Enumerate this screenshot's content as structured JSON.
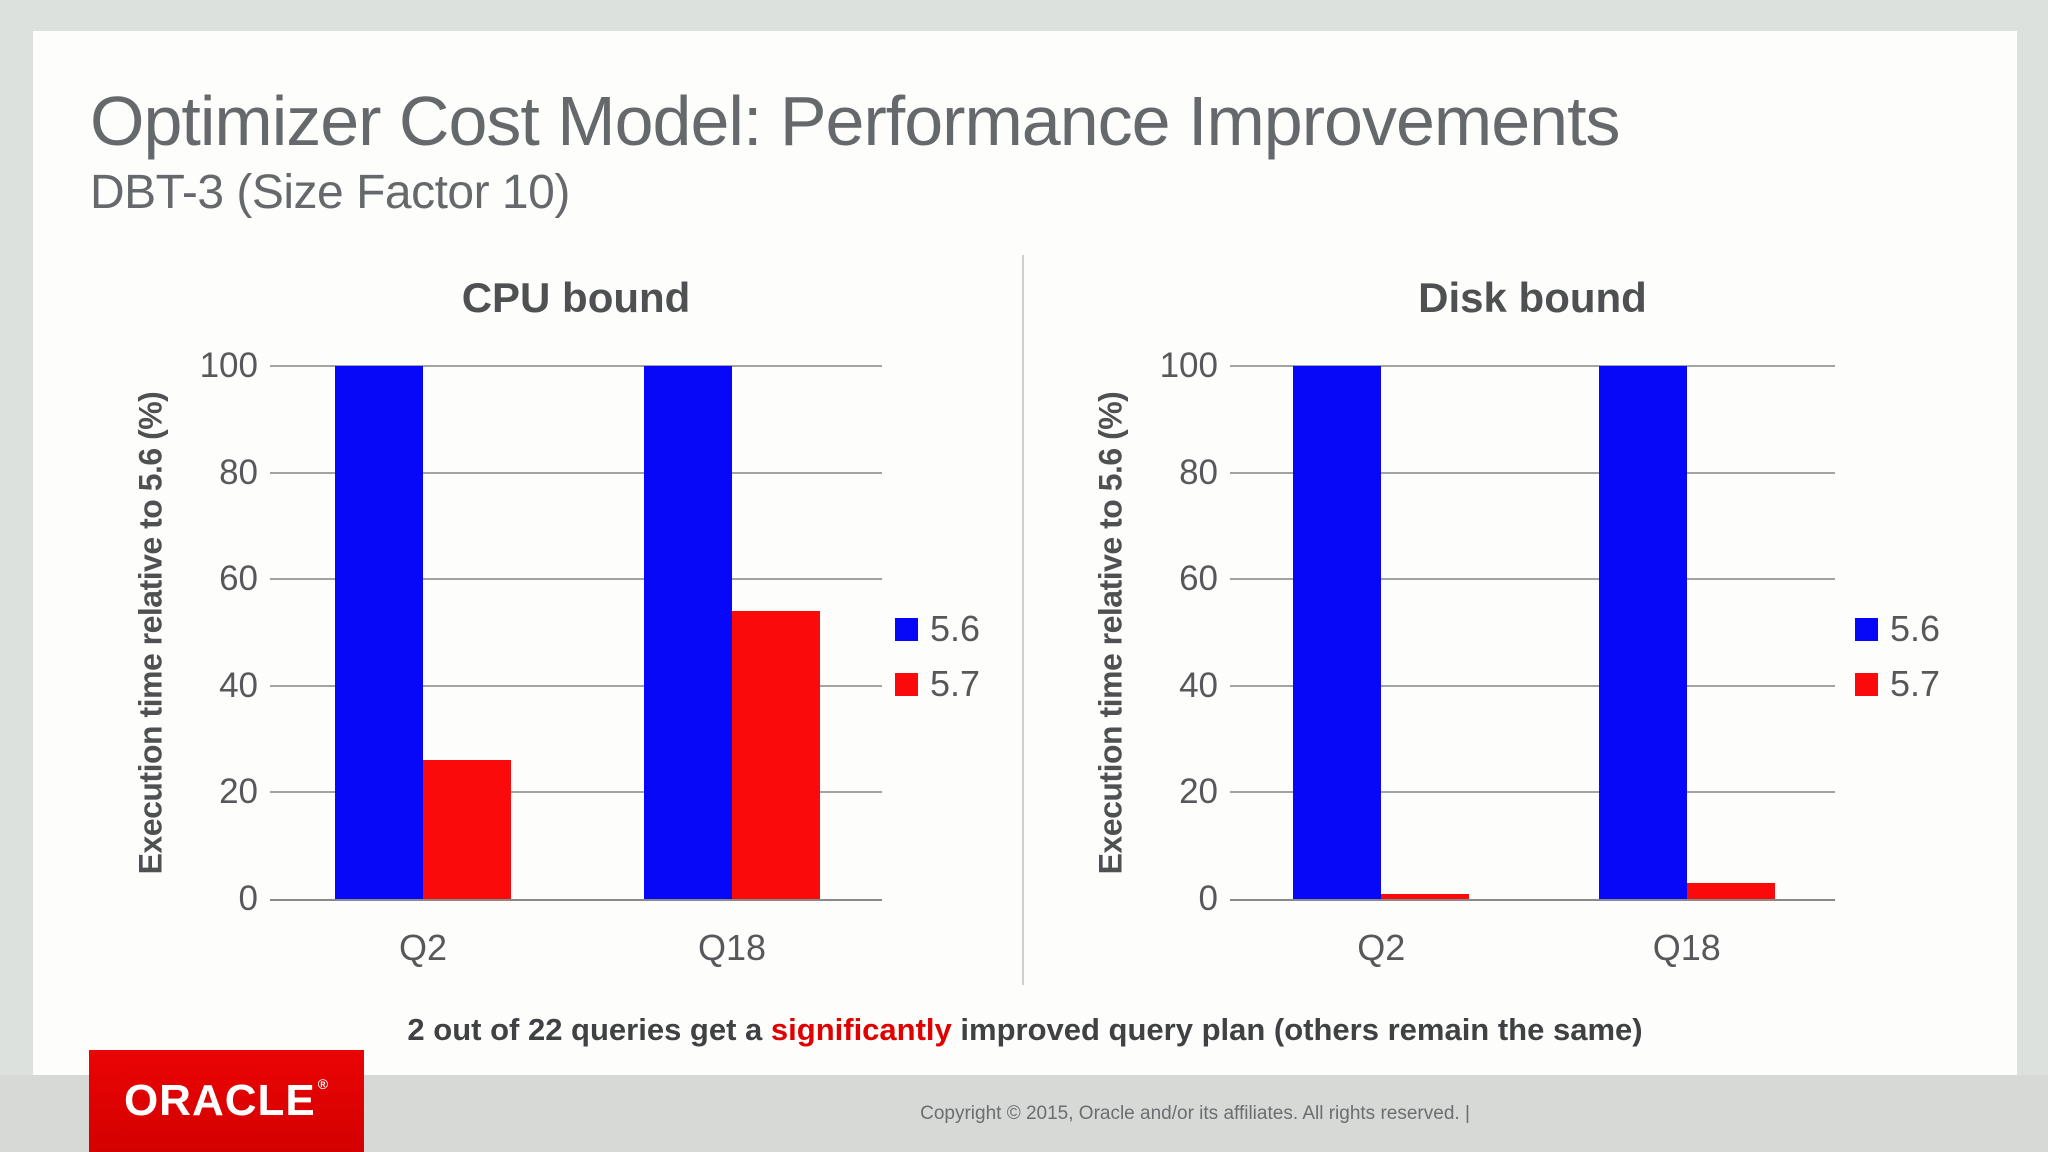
{
  "slide": {
    "title": "Optimizer Cost Model: Performance Improvements",
    "subtitle": "DBT-3 (Size Factor 10)",
    "statement": {
      "prefix": "2 out of 22 queries get a ",
      "highlight": "significantly",
      "suffix": " improved query plan (others remain the same)"
    }
  },
  "colors": {
    "bar_blue": "#0808f8",
    "bar_red": "#fa0a0a",
    "statement_highlight": "#e00000",
    "logo_red": "#dd0202",
    "page_background": "#dde1de",
    "footer_strip": "#d6d9d6"
  },
  "footer": {
    "logo_text": "ORACLE",
    "logo_registered_mark": "®",
    "copyright": "Copyright © 2015, Oracle and/or its affiliates. All rights reserved.  |"
  },
  "chart_data": [
    {
      "id": "cpu",
      "type": "bar",
      "title": "CPU bound",
      "categories": [
        "Q2",
        "Q18"
      ],
      "series": [
        {
          "name": "5.6",
          "color": "#0808f8",
          "values": [
            100,
            100
          ]
        },
        {
          "name": "5.7",
          "color": "#fa0a0a",
          "values": [
            26,
            54
          ]
        }
      ],
      "xlabel": "",
      "ylabel": "Execution time relative to 5.6 (%)",
      "ylim": [
        0,
        100
      ],
      "yticks": [
        0,
        20,
        40,
        60,
        80,
        100
      ],
      "grid": true,
      "legend_position": "right"
    },
    {
      "id": "disk",
      "type": "bar",
      "title": "Disk bound",
      "categories": [
        "Q2",
        "Q18"
      ],
      "series": [
        {
          "name": "5.6",
          "color": "#0808f8",
          "values": [
            100,
            100
          ]
        },
        {
          "name": "5.7",
          "color": "#fa0a0a",
          "values": [
            1,
            3
          ]
        }
      ],
      "xlabel": "",
      "ylabel": "Execution time relative to 5.6 (%)",
      "ylim": [
        0,
        100
      ],
      "yticks": [
        0,
        20,
        40,
        60,
        80,
        100
      ],
      "grid": true,
      "legend_position": "right"
    }
  ]
}
